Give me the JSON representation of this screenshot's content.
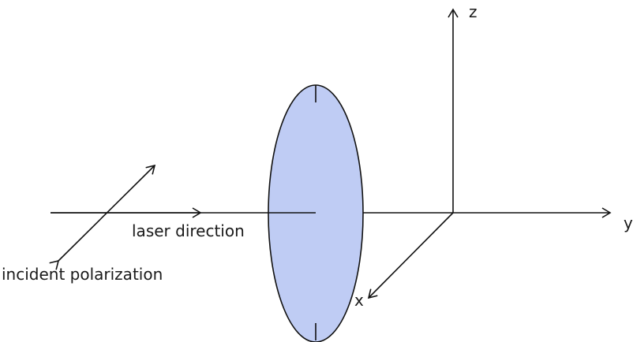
{
  "labels": {
    "laser_direction": "laser direction",
    "incident_polarization": "incident polarization",
    "axis_x": "x",
    "axis_y": "y",
    "axis_z": "z"
  },
  "colors": {
    "disk_fill": "#bfccf4",
    "line": "#111111",
    "text": "#1a1a1a"
  }
}
